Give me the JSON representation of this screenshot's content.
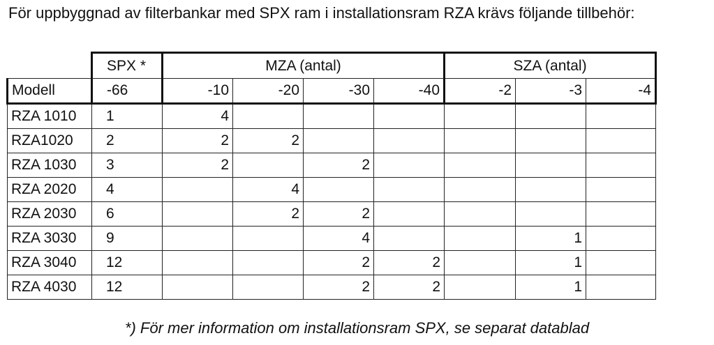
{
  "heading": "För uppbyggnad av filterbankar med SPX ram i installationsram RZA krävs följande tillbehör:",
  "table": {
    "groups": {
      "spx": "SPX *",
      "mza": "MZA (antal)",
      "sza": "SZA (antal)"
    },
    "subheaders": [
      "Modell",
      "-66",
      "-10",
      "-20",
      "-30",
      "-40",
      "-2",
      "-3",
      "-4"
    ],
    "rows": [
      [
        "RZA 1010",
        "1",
        "4",
        "",
        "",
        "",
        "",
        "",
        ""
      ],
      [
        "RZA1020",
        "2",
        "2",
        "2",
        "",
        "",
        "",
        "",
        ""
      ],
      [
        "RZA 1030",
        "3",
        "2",
        "",
        "2",
        "",
        "",
        "",
        ""
      ],
      [
        "RZA 2020",
        "4",
        "",
        "4",
        "",
        "",
        "",
        "",
        ""
      ],
      [
        "RZA 2030",
        "6",
        "",
        "2",
        "2",
        "",
        "",
        "",
        ""
      ],
      [
        "RZA 3030",
        "9",
        "",
        "",
        "4",
        "",
        "",
        "1",
        ""
      ],
      [
        "RZA 3040",
        "12",
        "",
        "",
        "2",
        "2",
        "",
        "1",
        ""
      ],
      [
        "RZA 4030",
        "12",
        "",
        "",
        "2",
        "2",
        "",
        "1",
        ""
      ]
    ]
  },
  "footnote": "*) För mer information om installationsram SPX, se separat datablad"
}
